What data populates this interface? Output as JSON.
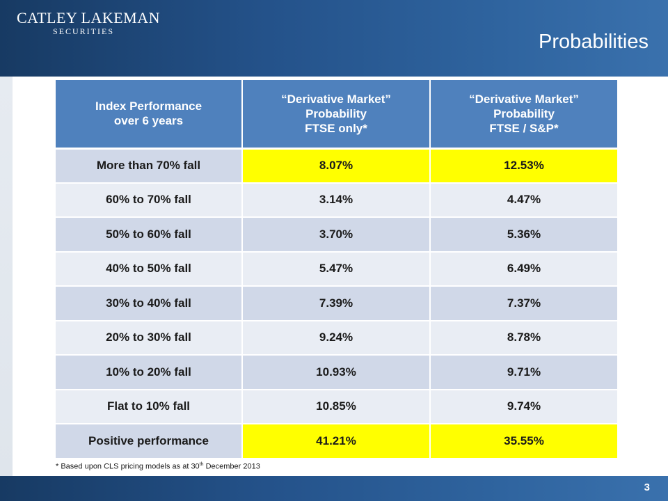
{
  "header": {
    "logo_main": "CATLEY LAKEMAN",
    "logo_sub": "SECURITIES",
    "title": "Probabilities"
  },
  "table": {
    "headers": [
      [
        "Index Performance",
        "over 6 years"
      ],
      [
        "“Derivative Market”",
        "Probability",
        "FTSE only*"
      ],
      [
        "“Derivative Market”",
        "Probability",
        "FTSE / S&P*"
      ]
    ],
    "rows": [
      {
        "label": "More than 70% fall",
        "ftse": "8.07%",
        "ftse_sp": "12.53%"
      },
      {
        "label": "60% to 70% fall",
        "ftse": "3.14%",
        "ftse_sp": "4.47%"
      },
      {
        "label": "50% to 60% fall",
        "ftse": "3.70%",
        "ftse_sp": "5.36%"
      },
      {
        "label": "40% to 50% fall",
        "ftse": "5.47%",
        "ftse_sp": "6.49%"
      },
      {
        "label": "30% to 40% fall",
        "ftse": "7.39%",
        "ftse_sp": "7.37%"
      },
      {
        "label": "20% to 30% fall",
        "ftse": "9.24%",
        "ftse_sp": "8.78%"
      },
      {
        "label": "10% to 20% fall",
        "ftse": "10.93%",
        "ftse_sp": "9.71%"
      },
      {
        "label": "Flat to 10% fall",
        "ftse": "10.85%",
        "ftse_sp": "9.74%"
      },
      {
        "label": "Positive performance",
        "ftse": "41.21%",
        "ftse_sp": "35.55%"
      }
    ]
  },
  "footnote": {
    "before": "* Based upon CLS pricing models as at 30",
    "sup": "th",
    "after": " December 2013"
  },
  "page_number": "3",
  "colors": {
    "header_blue": "#24528a",
    "table_header": "#4f81bd",
    "row_dark": "#d0d8e8",
    "row_light": "#e9edf4",
    "highlight": "#ffff00"
  }
}
